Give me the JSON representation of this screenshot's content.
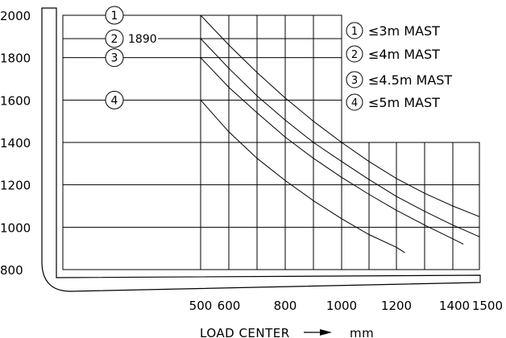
{
  "chart_data": {
    "type": "line",
    "title": "",
    "xlabel": "LOAD CENTER",
    "xlabel_unit": "mm",
    "ylabel": "",
    "x_ticks": [
      "500",
      "600",
      "800",
      "1000",
      "1200",
      "1400",
      "1500"
    ],
    "y_ticks": [
      "2000",
      "1800",
      "1600",
      "1400",
      "1200",
      "1000",
      "800"
    ],
    "xlim": [
      0,
      1500
    ],
    "ylim": [
      800,
      2000
    ],
    "grid": true,
    "legend": {
      "placement": "top-right",
      "items": [
        {
          "marker": "1",
          "text": "≤3m MAST"
        },
        {
          "marker": "2",
          "text": "≤4m MAST"
        },
        {
          "marker": "3",
          "text": "≤4.5m MAST"
        },
        {
          "marker": "4",
          "text": "≤5m MAST"
        }
      ]
    },
    "annotation": "1890",
    "series": [
      {
        "marker": "1",
        "x": [
          0,
          500,
          600,
          700,
          800,
          900,
          1000,
          1100,
          1200,
          1300,
          1400,
          1500
        ],
        "y": [
          2000,
          2000,
          1860,
          1730,
          1610,
          1500,
          1400,
          1310,
          1230,
          1160,
          1100,
          1050
        ]
      },
      {
        "marker": "2",
        "x": [
          0,
          500,
          600,
          700,
          800,
          900,
          1000,
          1100,
          1200,
          1300,
          1400,
          1500
        ],
        "y": [
          1890,
          1890,
          1750,
          1620,
          1505,
          1400,
          1310,
          1225,
          1145,
          1075,
          1010,
          955
        ]
      },
      {
        "marker": "3",
        "x": [
          0,
          500,
          600,
          700,
          800,
          900,
          1000,
          1100,
          1200,
          1300,
          1400,
          1440
        ],
        "y": [
          1800,
          1800,
          1660,
          1540,
          1425,
          1325,
          1235,
          1155,
          1080,
          1010,
          945,
          920
        ]
      },
      {
        "marker": "4",
        "x": [
          0,
          500,
          600,
          700,
          800,
          900,
          1000,
          1100,
          1200,
          1230
        ],
        "y": [
          1600,
          1600,
          1450,
          1325,
          1220,
          1125,
          1040,
          965,
          905,
          880
        ]
      }
    ]
  }
}
